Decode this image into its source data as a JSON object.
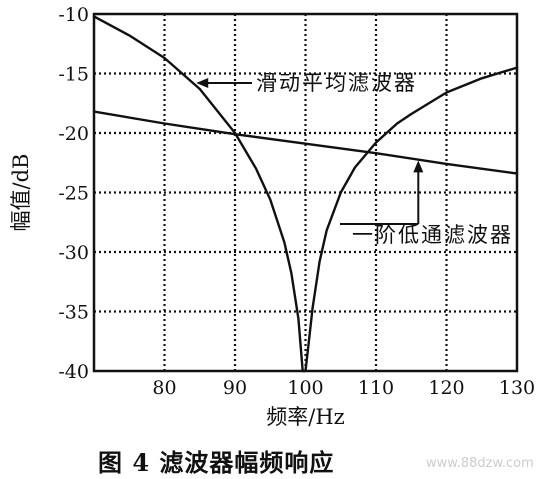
{
  "chart_data": {
    "type": "line",
    "xlabel": "频率/Hz",
    "ylabel": "幅值/dB",
    "xlim": [
      70,
      130
    ],
    "ylim": [
      -40,
      -10
    ],
    "xticks": [
      80,
      90,
      100,
      110,
      120,
      130
    ],
    "yticks": [
      -10,
      -15,
      -20,
      -25,
      -30,
      -35,
      -40
    ],
    "grid": true,
    "series": [
      {
        "name": "滑动平均滤波器",
        "x": [
          70,
          75,
          80,
          85,
          90,
          93,
          95,
          97,
          98,
          99,
          99.6,
          100,
          100.5,
          101,
          102,
          103,
          105,
          107,
          110,
          113,
          115,
          120,
          125,
          130
        ],
        "y": [
          -10.2,
          -11.8,
          -13.7,
          -16.3,
          -20.0,
          -23.0,
          -25.6,
          -29.2,
          -31.8,
          -35.6,
          -40,
          -40,
          -37.4,
          -34.7,
          -30.8,
          -28.2,
          -25.0,
          -22.9,
          -20.8,
          -19.2,
          -18.4,
          -16.6,
          -15.4,
          -14.5
        ]
      },
      {
        "name": "一阶低通滤波器",
        "x": [
          70,
          80,
          90,
          100,
          110,
          120,
          130
        ],
        "y": [
          -18.2,
          -19.2,
          -20.1,
          -20.9,
          -21.7,
          -22.6,
          -23.4
        ]
      }
    ],
    "annotations": [
      {
        "text": "滑动平均滤波器",
        "target_series": 0,
        "point": [
          84.5,
          -15.8
        ]
      },
      {
        "text": "一阶低通滤波器",
        "target_series": 1,
        "point": [
          116,
          -22.3
        ]
      }
    ]
  },
  "caption": "图 4   滤波器幅频响应",
  "watermark": "www.88dzw.com",
  "colors": {
    "line": "#111111",
    "grid": "#111111",
    "watermark": "#c8d0c8"
  }
}
